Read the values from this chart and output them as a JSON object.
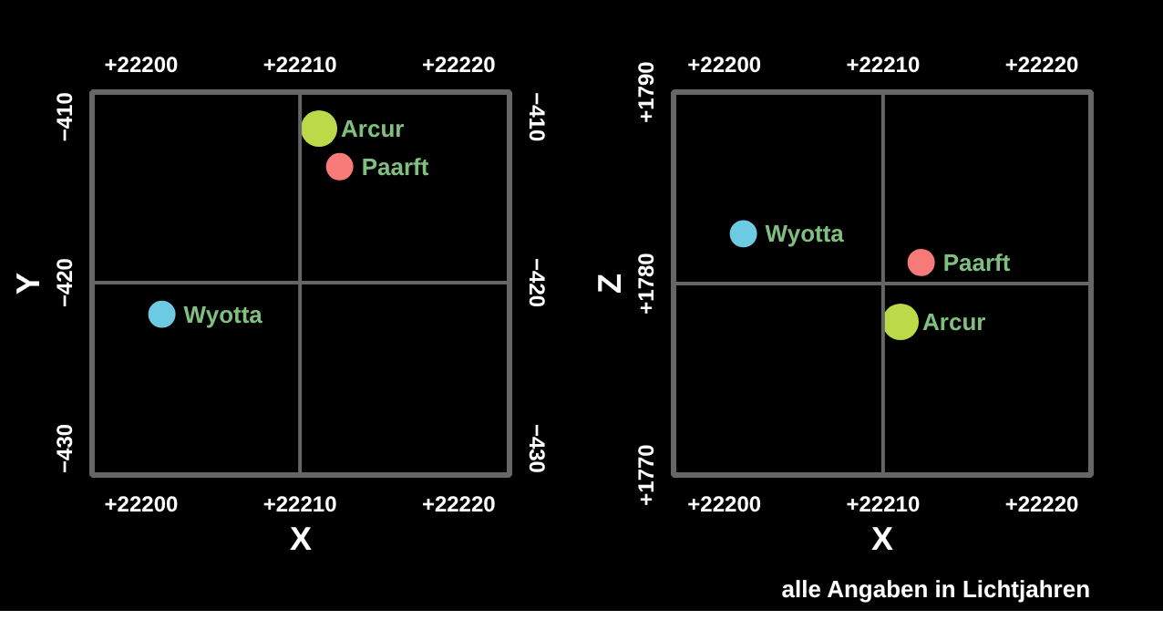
{
  "chart_data": [
    {
      "type": "bubble",
      "xlabel": "X",
      "ylabel": "Y",
      "xlim": [
        22196.9,
        22223.2
      ],
      "ylim": [
        -431.6,
        -408.5
      ],
      "xticks": [
        {
          "value": 22200,
          "label": "+22200"
        },
        {
          "value": 22210,
          "label": "+22210"
        },
        {
          "value": 22220,
          "label": "+22220"
        }
      ],
      "x2lim": [
        22196.9,
        22223.2
      ],
      "x2ticks": [
        {
          "value": 22200,
          "label": "+22200"
        },
        {
          "value": 22210,
          "label": "+22210"
        },
        {
          "value": 22220,
          "label": "+22220"
        }
      ],
      "yticks": [
        -430,
        -420,
        -410
      ],
      "y2lim": [
        -431.6,
        -408.5
      ],
      "y2ticks": [
        -430,
        -420,
        -410
      ],
      "ref_lines": [
        {
          "axis": "x",
          "value": 22210,
          "color": "#666666"
        },
        {
          "axis": "y",
          "value": -420,
          "color": "#666666"
        }
      ],
      "series": [
        {
          "name": "Arcur",
          "color": "#bcd94a",
          "x": [
            22211.2
          ],
          "values": [
            -410.7
          ],
          "sizes": [
            1
          ]
        },
        {
          "name": "Paarft",
          "color": "#f87a78",
          "x": [
            22212.5
          ],
          "values": [
            -413.0
          ],
          "sizes": [
            0.56
          ]
        },
        {
          "name": "Wyotta",
          "color": "#6ccbe3",
          "x": [
            22201.3
          ],
          "values": [
            -421.9
          ],
          "sizes": [
            0.56
          ]
        }
      ]
    },
    {
      "type": "bubble",
      "xlabel": "X",
      "ylabel": "Z",
      "xlim": [
        22196.8,
        22223.1
      ],
      "ylim": [
        1770,
        1790
      ],
      "xticks": [
        {
          "value": 22200,
          "label": "+22200"
        },
        {
          "value": 22210,
          "label": "+22210"
        },
        {
          "value": 22220,
          "label": "+22220"
        }
      ],
      "x2lim": [
        22196.8,
        22223.1
      ],
      "x2ticks": [
        {
          "value": 22200,
          "label": "+22200"
        },
        {
          "value": 22210,
          "label": "+22210"
        },
        {
          "value": 22220,
          "label": "+22220"
        }
      ],
      "yticks": [
        {
          "value": 1770,
          "label": "+1770"
        },
        {
          "value": 1780,
          "label": "+1780"
        },
        {
          "value": 1790,
          "label": "+1790"
        }
      ],
      "ref_lines": [
        {
          "axis": "x",
          "value": 22210,
          "color": "#666666"
        },
        {
          "axis": "y",
          "value": 1780,
          "color": "#666666"
        }
      ],
      "annotations": [
        "alle Angaben in Lichtjahren"
      ],
      "series": [
        {
          "name": "Wyotta",
          "color": "#6ccbe3",
          "x": [
            22201.2
          ],
          "values": [
            1782.6
          ],
          "sizes": [
            0.56
          ]
        },
        {
          "name": "Paarft",
          "color": "#f87a78",
          "x": [
            22212.4
          ],
          "values": [
            1781.1
          ],
          "sizes": [
            0.56
          ]
        },
        {
          "name": "Arcur",
          "color": "#bcd94a",
          "x": [
            22211.1
          ],
          "values": [
            1778.0
          ],
          "sizes": [
            1
          ]
        }
      ]
    }
  ]
}
